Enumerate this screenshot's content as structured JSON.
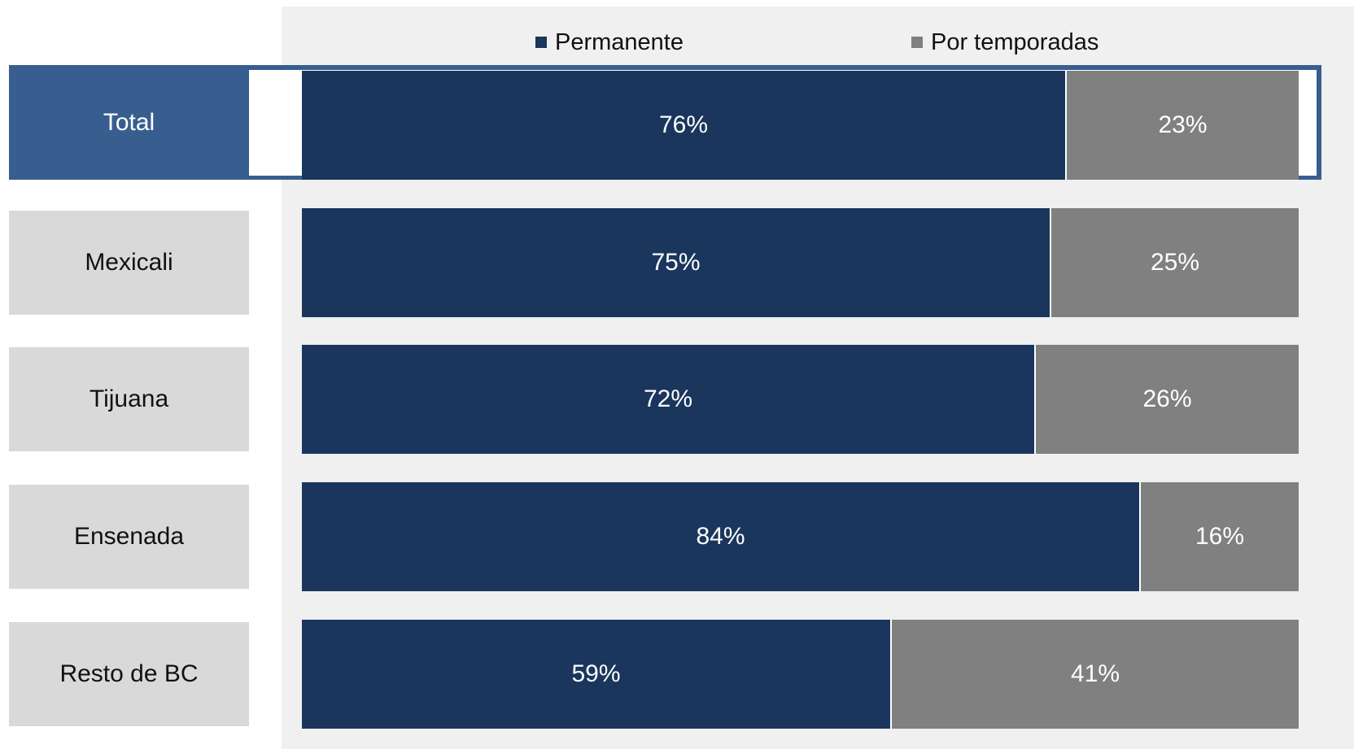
{
  "colors": {
    "permanente": "#1a365d",
    "temporadas": "#808080",
    "highlight": "#385e8f"
  },
  "chart_data": {
    "type": "bar",
    "orientation": "horizontal",
    "stacked": true,
    "categories": [
      "Total",
      "Mexicali",
      "Tijuana",
      "Ensenada",
      "Resto de BC"
    ],
    "series": [
      {
        "name": "Permanente",
        "values": [
          76,
          75,
          72,
          84,
          59
        ],
        "labels": [
          "76%",
          "75%",
          "72%",
          "84%",
          "59%"
        ]
      },
      {
        "name": "Por temporadas",
        "values": [
          23,
          25,
          26,
          16,
          41
        ],
        "labels": [
          "23%",
          "25%",
          "26%",
          "16%",
          "41%"
        ]
      }
    ],
    "highlighted_category": "Total",
    "legend": "top",
    "xlim": [
      0,
      100
    ]
  }
}
